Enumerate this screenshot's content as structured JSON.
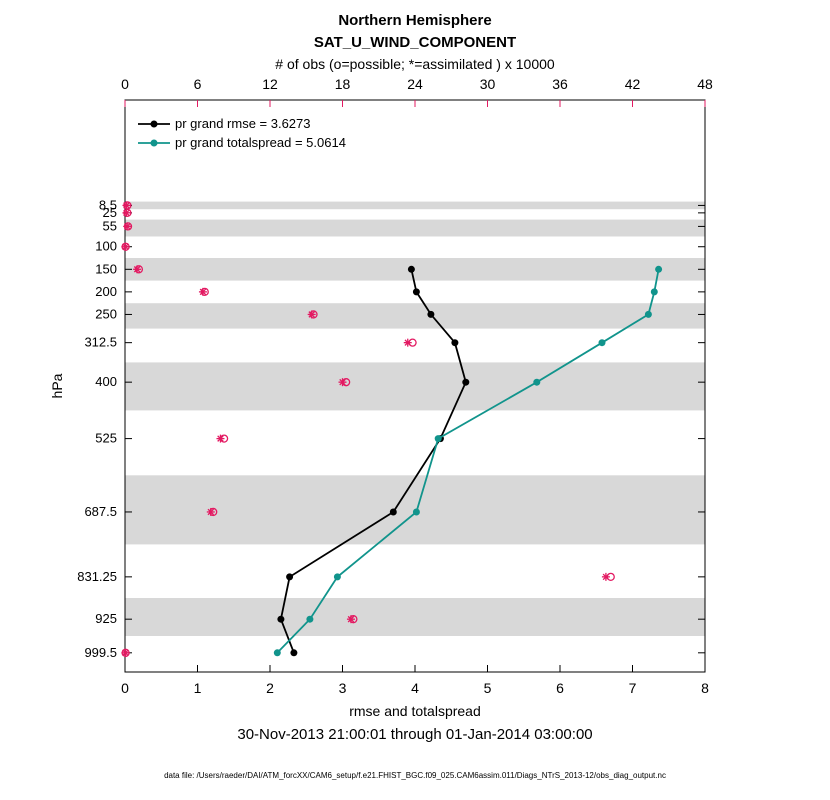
{
  "chart_data": {
    "type": "line",
    "title_line1": "Northern Hemisphere",
    "title_line2": "SAT_U_WIND_COMPONENT",
    "top_axis_label": "# of obs (o=possible; *=assimilated ) x 10000",
    "xlabel": "rmse and totalspread",
    "ylabel": "hPa",
    "date_caption": "30-Nov-2013 21:00:01 through 01-Jan-2014 03:00:00",
    "footer": "data file: /Users/raeder/DAI/ATM_forcXX/CAM6_setup/f.e21.FHIST_BGC.f09_025.CAM6assim.011/Diags_NTrS_2013-12/obs_diag_output.nc",
    "colors": {
      "rmse": "#000000",
      "totalspread": "#11948c",
      "obs": "#e31a62",
      "legend_text": "#0000cc",
      "band": "#d8d8d8",
      "axis": "#000000"
    },
    "x_bottom": {
      "min": 0,
      "max": 8,
      "ticks": [
        0,
        1,
        2,
        3,
        4,
        5,
        6,
        7,
        8
      ]
    },
    "x_top": {
      "min": 0,
      "max": 48,
      "ticks": [
        0,
        6,
        12,
        18,
        24,
        30,
        36,
        42,
        48
      ]
    },
    "y_axis": {
      "top_value": -225,
      "bottom_value": 1042,
      "unit": "hPa"
    },
    "levels": [
      8.5,
      25,
      55,
      100,
      150,
      200,
      250,
      312.5,
      400,
      525,
      687.5,
      831.25,
      925,
      999.5
    ],
    "level_labels": [
      "8.5",
      "25",
      "55",
      "100",
      "150",
      "200",
      "250",
      "312.5",
      "400",
      "525",
      "687.5",
      "831.25",
      "925",
      "999.5"
    ],
    "shaded_level_indices": [
      0,
      2,
      4,
      6,
      8,
      10,
      12
    ],
    "legend": [
      {
        "label": "pr grand rmse = 3.6273",
        "series": "rmse"
      },
      {
        "label": "pr grand totalspread = 5.0614",
        "series": "totalspread"
      }
    ],
    "series": [
      {
        "name": "rmse",
        "color_key": "rmse",
        "levels": [
          150,
          200,
          250,
          312.5,
          400,
          525,
          687.5,
          831.25,
          925,
          999.5
        ],
        "values": [
          3.95,
          4.02,
          4.22,
          4.55,
          4.7,
          4.35,
          3.7,
          2.27,
          2.15,
          2.33
        ]
      },
      {
        "name": "totalspread",
        "color_key": "totalspread",
        "levels": [
          150,
          200,
          250,
          312.5,
          400,
          525,
          687.5,
          831.25,
          925,
          999.5
        ],
        "values": [
          7.36,
          7.3,
          7.22,
          6.58,
          5.68,
          4.32,
          4.02,
          2.93,
          2.55,
          2.1
        ]
      }
    ],
    "obs_counts_x10000": {
      "levels": [
        8.5,
        25,
        55,
        100,
        150,
        200,
        250,
        312.5,
        400,
        525,
        687.5,
        831.25,
        925,
        999.5
      ],
      "possible": [
        0.2,
        0.2,
        0.25,
        0.05,
        1.15,
        6.6,
        15.6,
        23.8,
        18.3,
        8.2,
        7.3,
        40.2,
        18.9,
        0.05
      ],
      "assimilated": [
        0.12,
        0.12,
        0.18,
        0.03,
        1.0,
        6.45,
        15.45,
        23.4,
        18.0,
        7.9,
        7.1,
        39.8,
        18.7,
        0.03
      ]
    }
  }
}
